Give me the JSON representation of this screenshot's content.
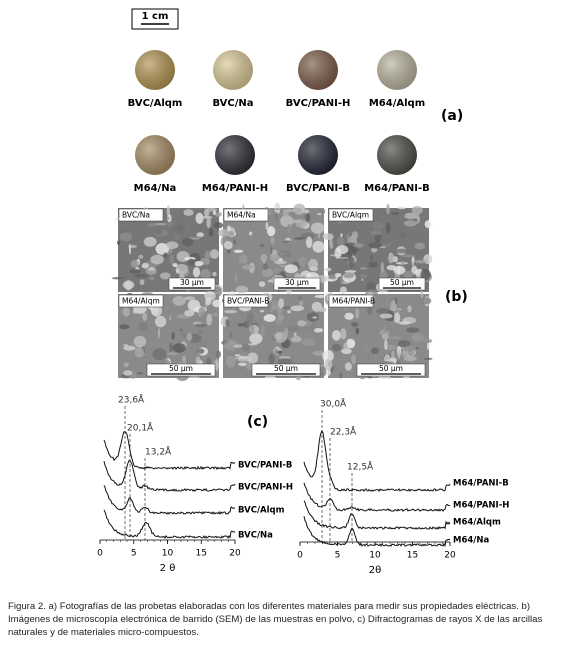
{
  "panel_a": {
    "scale_bar": "1 cm",
    "label": "(a)",
    "samples": [
      "BVC/Alqm",
      "BVC/Na",
      "BVC/PANI-H",
      "M64/Alqm",
      "M64/Na",
      "M64/PANI-H",
      "BVC/PANI-B",
      "M64/PANI-B"
    ]
  },
  "panel_b": {
    "label": "(b)",
    "images": [
      {
        "name": "BVC/Na",
        "scale": "30 µm"
      },
      {
        "name": "M64/Na",
        "scale": "30 µm"
      },
      {
        "name": "BVC/Alqm",
        "scale": "50 µm"
      },
      {
        "name": "M64/Alqm",
        "scale": "50 µm"
      },
      {
        "name": "BVC/PANI-B",
        "scale": "50 µm"
      },
      {
        "name": "M64/PANI-B",
        "scale": "50 µm"
      }
    ]
  },
  "panel_c": {
    "label": "(c)",
    "plots": [
      {
        "xlabel": "2 θ",
        "xlim": [
          0,
          20
        ],
        "xticks": [
          0,
          5,
          10,
          15,
          20
        ],
        "peaks": [
          "23,6Å",
          "20,1Å",
          "13,2Å"
        ],
        "series": [
          "BVC/PANI-B",
          "BVC/PANI-H",
          "BVC/Alqm",
          "BVC/Na"
        ]
      },
      {
        "xlabel": "2θ",
        "xlim": [
          0,
          20
        ],
        "xticks": [
          0,
          5,
          10,
          15,
          20
        ],
        "peaks": [
          "30,0Å",
          "22,3Å",
          "12,5Å"
        ],
        "series": [
          "M64/PANI-B",
          "M64/PANI-H",
          "M64/Alqm",
          "M64/Na"
        ]
      }
    ]
  },
  "caption": "Figura 2. a) Fotografías de las probetas elaboradas con los diferentes materiales para medir sus propiedades eléctricas. b) Imágenes de microscopía electrónica de barrido (SEM) de las muestras en polvo, c) Difractogramas de rayos X de las arcillas naturales y de materiales micro-compuestos."
}
